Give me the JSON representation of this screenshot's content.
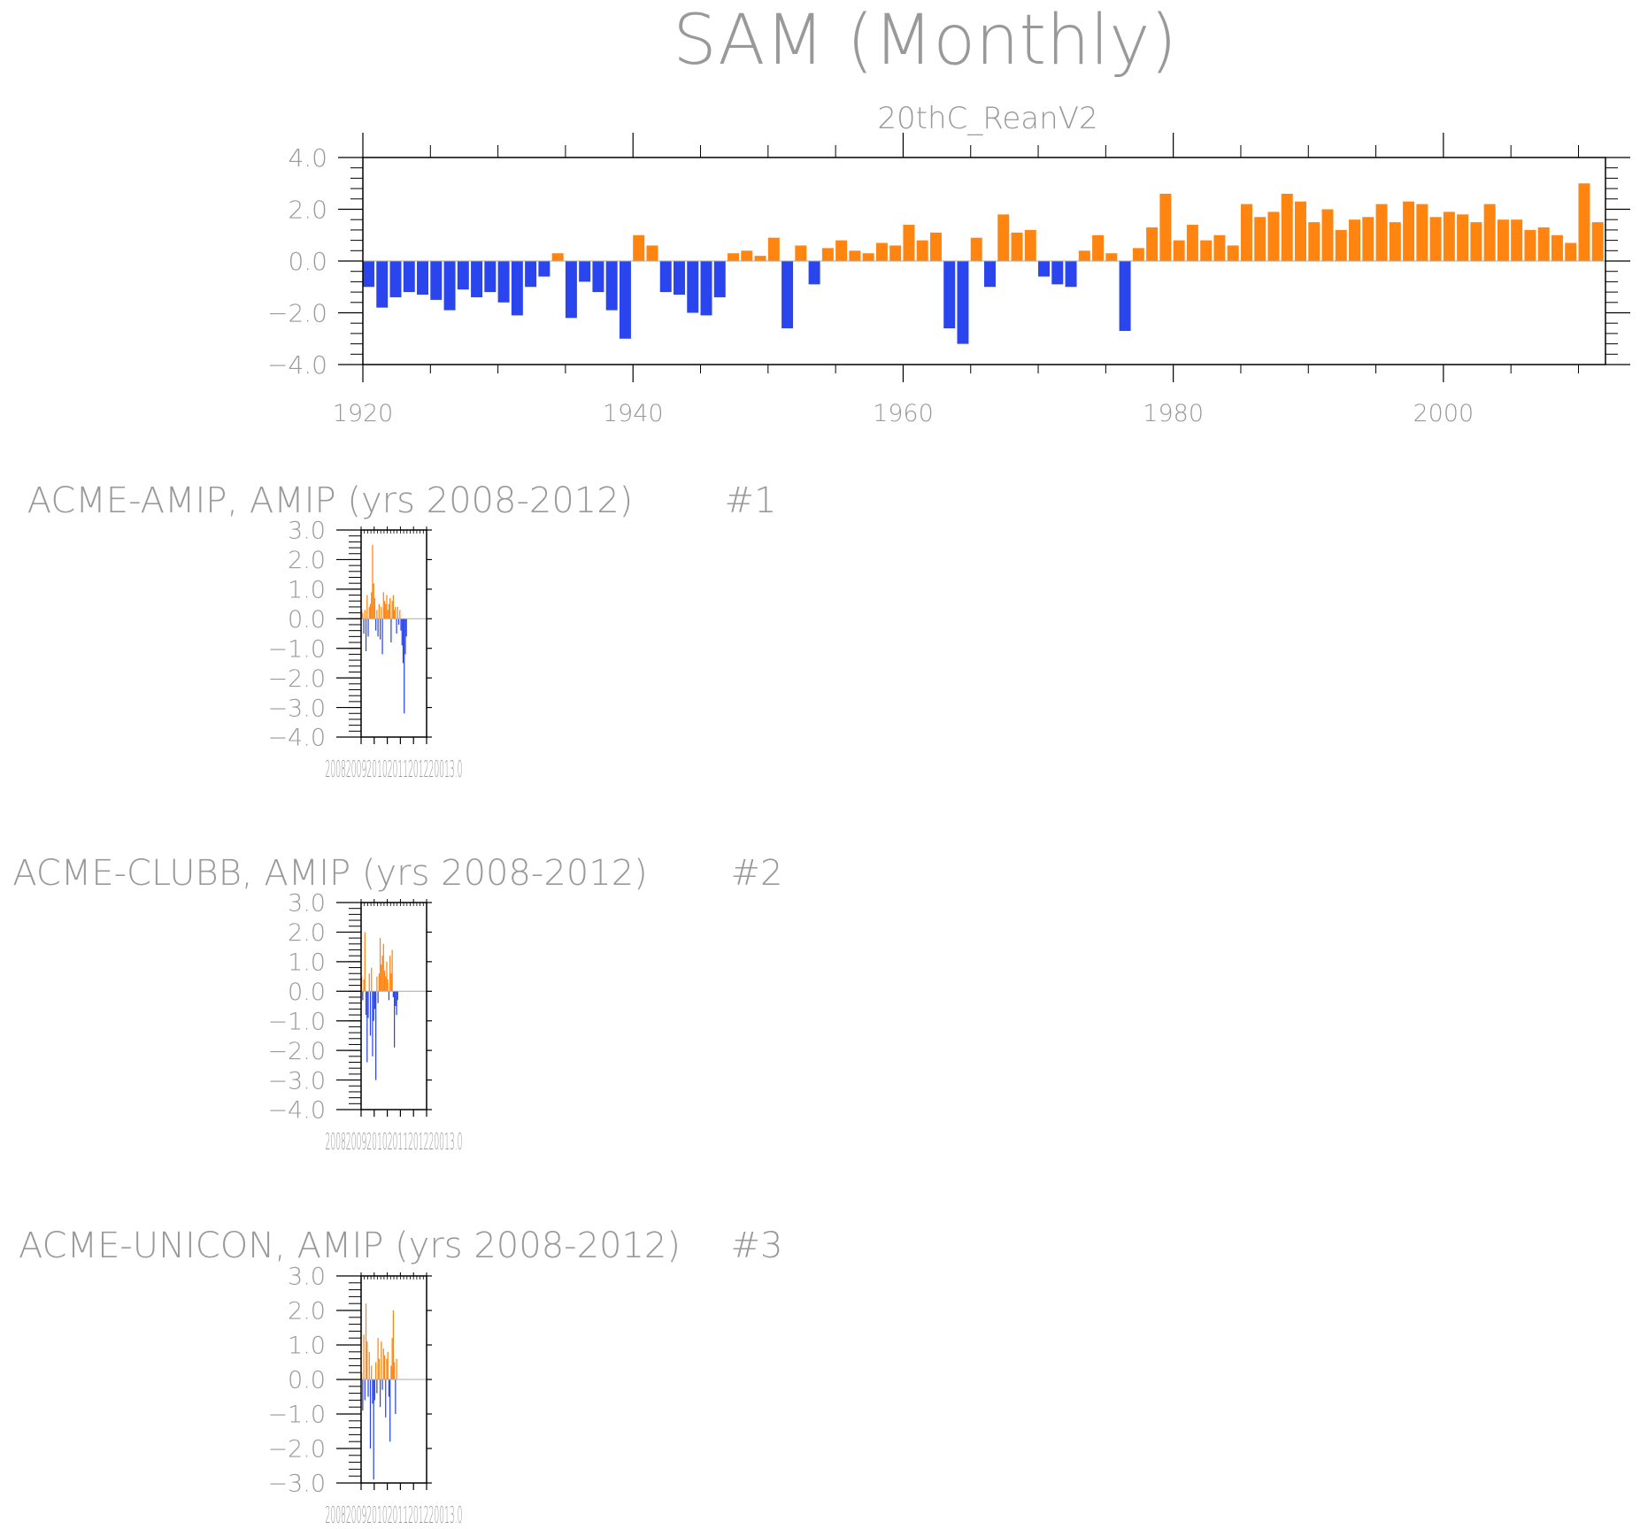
{
  "title": "SAM (Monthly)",
  "colors": {
    "positive": "#ff8410",
    "negative": "#2a44ee",
    "axis": "#000000",
    "text": "#999999",
    "zero_line": "#aaaaaa"
  },
  "chart_data": [
    {
      "type": "bar",
      "subtitle": "20thC_ReanV2",
      "xlim": [
        1920,
        2012
      ],
      "ylim": [
        -4.0,
        4.0
      ],
      "x_ticks": [
        1920,
        1940,
        1960,
        1980,
        2000
      ],
      "x_tick_labels": [
        "1920",
        "1940",
        "1960",
        "1980",
        "2000"
      ],
      "y_ticks": [
        -4.0,
        -2.0,
        0.0,
        2.0,
        4.0
      ],
      "y_tick_labels": [
        "−4.0",
        "−2.0",
        "0.0",
        "2.0",
        "4.0"
      ],
      "x": [
        1920.0,
        1921.0,
        1922.0,
        1923.0,
        1924.0,
        1925.0,
        1926.0,
        1927.0,
        1928.0,
        1929.0,
        1930.0,
        1931.0,
        1932.0,
        1933.0,
        1934.0,
        1935.0,
        1936.0,
        1937.0,
        1938.0,
        1939.0,
        1940.0,
        1941.0,
        1942.0,
        1943.0,
        1944.0,
        1945.0,
        1946.0,
        1947.0,
        1948.0,
        1949.0,
        1950.0,
        1951.0,
        1952.0,
        1953.0,
        1954.0,
        1955.0,
        1956.0,
        1957.0,
        1958.0,
        1959.0,
        1960.0,
        1961.0,
        1962.0,
        1963.0,
        1964.0,
        1965.0,
        1966.0,
        1967.0,
        1968.0,
        1969.0,
        1970.0,
        1971.0,
        1972.0,
        1973.0,
        1974.0,
        1975.0,
        1976.0,
        1977.0,
        1978.0,
        1979.0,
        1980.0,
        1981.0,
        1982.0,
        1983.0,
        1984.0,
        1985.0,
        1986.0,
        1987.0,
        1988.0,
        1989.0,
        1990.0,
        1991.0,
        1992.0,
        1993.0,
        1994.0,
        1995.0,
        1996.0,
        1997.0,
        1998.0,
        1999.0,
        2000.0,
        2001.0,
        2002.0,
        2003.0,
        2004.0,
        2005.0,
        2006.0,
        2007.0,
        2008.0,
        2009.0,
        2010.0,
        2011.0
      ],
      "values": [
        -1.0,
        -1.8,
        -1.4,
        -1.2,
        -1.3,
        -1.5,
        -1.9,
        -1.1,
        -1.4,
        -1.2,
        -1.6,
        -2.1,
        -1.0,
        -0.6,
        0.3,
        -2.2,
        -0.8,
        -1.2,
        -1.9,
        -3.0,
        1.0,
        0.6,
        -1.2,
        -1.3,
        -2.0,
        -2.1,
        -1.4,
        0.3,
        0.4,
        0.2,
        0.9,
        -2.6,
        0.6,
        -0.9,
        0.5,
        0.8,
        0.4,
        0.3,
        0.7,
        0.6,
        1.4,
        0.8,
        1.1,
        -2.6,
        -3.2,
        0.9,
        -1.0,
        1.8,
        1.1,
        1.2,
        -0.6,
        -0.9,
        -1.0,
        0.4,
        1.0,
        0.3,
        -2.7,
        0.5,
        1.3,
        2.6,
        0.8,
        1.4,
        0.8,
        1.0,
        0.6,
        2.2,
        1.7,
        1.9,
        2.6,
        2.3,
        1.5,
        2.0,
        1.2,
        1.6,
        1.7,
        2.2,
        1.5,
        2.3,
        2.2,
        1.7,
        1.9,
        1.8,
        1.5,
        2.2,
        1.6,
        1.6,
        1.2,
        1.3,
        1.0,
        0.7,
        3.0,
        1.5
      ]
    },
    {
      "type": "bar",
      "title": "ACME-AMIP, AMIP (yrs 2008-2012)",
      "panel_label": "#1",
      "xlim": [
        2008,
        2013
      ],
      "ylim": [
        -4.0,
        3.0
      ],
      "x_tick_label_text": "2008200920102011201220013.0",
      "y_ticks": [
        -4.0,
        -3.0,
        -2.0,
        -1.0,
        0.0,
        1.0,
        2.0,
        3.0
      ],
      "y_tick_labels": [
        "−4.0",
        "−3.0",
        "−2.0",
        "−1.0",
        "0.0",
        "1.0",
        "2.0",
        "3.0"
      ],
      "x": [
        2008.0,
        2008.0833,
        2008.1667,
        2008.25,
        2008.3333,
        2008.4167,
        2008.5,
        2008.5833,
        2008.6667,
        2008.75,
        2008.8333,
        2008.9167,
        2009.0,
        2009.0833,
        2009.1667,
        2009.25,
        2009.3333,
        2009.4167,
        2009.5,
        2009.5833,
        2009.6667,
        2009.75,
        2009.8333,
        2009.9167,
        2010.0,
        2010.0833,
        2010.1667,
        2010.25,
        2010.3333,
        2010.4167,
        2010.5,
        2010.5833,
        2010.6667,
        2010.75,
        2010.8333,
        2010.9167,
        2011.0,
        2011.0833,
        2011.1667,
        2011.25,
        2011.3333,
        2011.4167,
        2011.5,
        2011.5833,
        2011.6667,
        2011.75,
        2011.8333,
        2011.9167,
        2012.0,
        2012.0833,
        2012.1667,
        2012.25,
        2012.3333,
        2012.4167,
        2012.5,
        2012.5833,
        2012.6667,
        2012.75,
        2012.8333,
        2012.9167
      ],
      "values": [
        0.3,
        0.2,
        -0.5,
        0.3,
        -1.1,
        0.8,
        -0.6,
        0.4,
        0.5,
        0.9,
        2.5,
        1.2,
        0.7,
        -0.4,
        0.3,
        -0.6,
        0.5,
        -0.7,
        0.4,
        -1.2,
        0.9,
        0.6,
        0.5,
        0.8,
        0.3,
        0.5,
        0.7,
        -0.8,
        0.6,
        0.8,
        0.3,
        0.4,
        -0.5,
        0.4,
        -0.2,
        0.3,
        -0.4,
        -0.9,
        -1.5,
        -3.2,
        -1.2,
        -0.6,
        0.0,
        0.0,
        0.0,
        0.0,
        0.0,
        0.0,
        0.0,
        0.0,
        0.0,
        0.0,
        0.0,
        0.0,
        0.0,
        0.0,
        0.0,
        0.0,
        0.0,
        0.0
      ]
    },
    {
      "type": "bar",
      "title": "ACME-CLUBB, AMIP (yrs 2008-2012)",
      "panel_label": "#2",
      "xlim": [
        2008,
        2013
      ],
      "ylim": [
        -4.0,
        3.0
      ],
      "x_tick_label_text": "2008200920102011201220013.0",
      "y_ticks": [
        -4.0,
        -3.0,
        -2.0,
        -1.0,
        0.0,
        1.0,
        2.0,
        3.0
      ],
      "y_tick_labels": [
        "−4.0",
        "−3.0",
        "−2.0",
        "−1.0",
        "0.0",
        "1.0",
        "2.0",
        "3.0"
      ],
      "x": [
        2008.0,
        2008.0833,
        2008.1667,
        2008.25,
        2008.3333,
        2008.4167,
        2008.5,
        2008.5833,
        2008.6667,
        2008.75,
        2008.8333,
        2008.9167,
        2009.0,
        2009.0833,
        2009.1667,
        2009.25,
        2009.3333,
        2009.4167,
        2009.5,
        2009.5833,
        2009.6667,
        2009.75,
        2009.8333,
        2009.9167,
        2010.0,
        2010.0833,
        2010.1667,
        2010.25,
        2010.3333,
        2010.4167,
        2010.5,
        2010.5833,
        2010.6667,
        2010.75,
        2010.8333,
        2010.9167,
        2011.0,
        2011.0833,
        2011.1667,
        2011.25,
        2011.3333,
        2011.4167,
        2011.5,
        2011.5833,
        2011.6667,
        2011.75,
        2011.8333,
        2011.9167,
        2012.0,
        2012.0833,
        2012.1667,
        2012.25,
        2012.3333,
        2012.4167,
        2012.5,
        2012.5833,
        2012.6667,
        2012.75,
        2012.8333,
        2012.9167
      ],
      "values": [
        0.5,
        -0.3,
        0.4,
        2.0,
        -0.8,
        -2.4,
        -0.9,
        0.6,
        -1.5,
        0.8,
        -2.2,
        -1.0,
        -0.6,
        -3.0,
        0.5,
        -0.4,
        0.6,
        1.8,
        0.9,
        1.2,
        1.6,
        0.7,
        0.5,
        1.0,
        0.4,
        -0.3,
        1.2,
        0.6,
        1.4,
        -0.2,
        -1.9,
        -0.5,
        -0.8,
        -0.3,
        0.0,
        0.0,
        0.0,
        0.0,
        0.0,
        0.0,
        0.0,
        0.0,
        0.0,
        0.0,
        0.0,
        0.0,
        0.0,
        0.0,
        0.0,
        0.0,
        0.0,
        0.0,
        0.0,
        0.0,
        0.0,
        0.0,
        0.0,
        0.0,
        0.0,
        0.0
      ]
    },
    {
      "type": "bar",
      "title": "ACME-UNICON, AMIP (yrs 2008-2012)",
      "panel_label": "#3",
      "xlim": [
        2008,
        2013
      ],
      "ylim": [
        -3.0,
        3.0
      ],
      "x_tick_label_text": "2008200920102011201220013.0",
      "y_ticks": [
        -3.0,
        -2.0,
        -1.0,
        0.0,
        1.0,
        2.0,
        3.0
      ],
      "y_tick_labels": [
        "−3.0",
        "−2.0",
        "−1.0",
        "0.0",
        "1.0",
        "2.0",
        "3.0"
      ],
      "x": [
        2008.0,
        2008.0833,
        2008.1667,
        2008.25,
        2008.3333,
        2008.4167,
        2008.5,
        2008.5833,
        2008.6667,
        2008.75,
        2008.8333,
        2008.9167,
        2009.0,
        2009.0833,
        2009.1667,
        2009.25,
        2009.3333,
        2009.4167,
        2009.5,
        2009.5833,
        2009.6667,
        2009.75,
        2009.8333,
        2009.9167,
        2010.0,
        2010.0833,
        2010.1667,
        2010.25,
        2010.3333,
        2010.4167,
        2010.5,
        2010.5833,
        2010.6667,
        2010.75,
        2010.8333,
        2010.9167,
        2011.0,
        2011.0833,
        2011.1667,
        2011.25,
        2011.3333,
        2011.4167,
        2011.5,
        2011.5833,
        2011.6667,
        2011.75,
        2011.8333,
        2011.9167,
        2012.0,
        2012.0833,
        2012.1667,
        2012.25,
        2012.3333,
        2012.4167,
        2012.5,
        2012.5833,
        2012.6667,
        2012.75,
        2012.8333,
        2012.9167
      ],
      "values": [
        0.2,
        -0.9,
        1.3,
        -0.6,
        2.2,
        1.1,
        -0.5,
        0.8,
        -2.0,
        0.4,
        -0.7,
        -2.9,
        -0.6,
        0.5,
        -0.4,
        1.2,
        0.6,
        -0.8,
        1.1,
        -0.3,
        0.9,
        0.7,
        -1.1,
        0.6,
        0.8,
        -0.5,
        -1.8,
        0.4,
        1.2,
        2.0,
        0.5,
        -1.0,
        0.6,
        0.0,
        0.0,
        0.0,
        0.0,
        0.0,
        0.0,
        0.0,
        0.0,
        0.0,
        0.0,
        0.0,
        0.0,
        0.0,
        0.0,
        0.0,
        0.0,
        0.0,
        0.0,
        0.0,
        0.0,
        0.0,
        0.0,
        0.0,
        0.0,
        0.0,
        0.0,
        0.0
      ]
    }
  ]
}
